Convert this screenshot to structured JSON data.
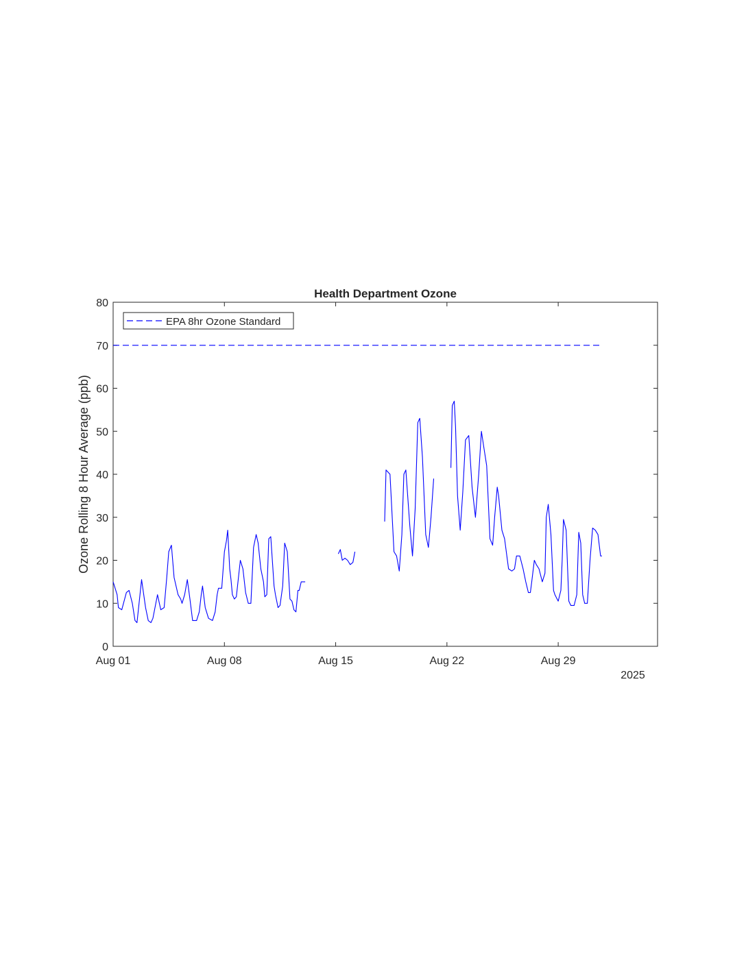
{
  "chart_data": {
    "type": "line",
    "title": "Health Department Ozone",
    "xlabel": "",
    "ylabel": "Ozone Rolling 8 Hour Average (ppb)",
    "x_axis": {
      "type": "date",
      "range": [
        "2025-08-01",
        "2025-09-04 06:00"
      ],
      "ticks": [
        "2025-08-01",
        "2025-08-08",
        "2025-08-15",
        "2025-08-22",
        "2025-08-29"
      ],
      "tick_labels": [
        "Aug 01",
        "Aug 08",
        "Aug 15",
        "Aug 22",
        "Aug 29"
      ],
      "secondary_label": "2025"
    },
    "y_axis": {
      "range": [
        0,
        80
      ],
      "ticks": [
        0,
        10,
        20,
        30,
        40,
        50,
        60,
        70,
        80
      ],
      "tick_labels": [
        "0",
        "10",
        "20",
        "30",
        "40",
        "50",
        "60",
        "70",
        "80"
      ]
    },
    "grid": false,
    "legend": {
      "placement": "top-left",
      "entries": [
        {
          "label": "EPA 8hr Ozone Standard",
          "style": "dashed",
          "color": "#0000ff"
        }
      ]
    },
    "series": [
      {
        "name": "EPA 8hr Ozone Standard",
        "style": "dashed",
        "color": "#0000ff",
        "x": [
          "2025-08-01",
          "2025-08-31 18:00"
        ],
        "y": [
          70,
          70
        ]
      },
      {
        "style": "solid",
        "color": "#0000ff",
        "segments": [
          {
            "x": [
              "2025-08-01 00:00",
              "2025-08-01 06:00",
              "2025-08-01 08:00",
              "2025-08-01 13:00",
              "2025-08-01 20:00",
              "2025-08-02 00:00",
              "2025-08-02 05:00",
              "2025-08-02 09:00",
              "2025-08-02 12:00",
              "2025-08-02 19:00",
              "2025-08-03 01:00",
              "2025-08-03 05:00",
              "2025-08-03 09:00",
              "2025-08-03 12:00",
              "2025-08-03 19:00",
              "2025-08-04 00:00",
              "2025-08-04 05:00",
              "2025-08-04 09:00",
              "2025-08-04 12:00",
              "2025-08-04 16:00",
              "2025-08-04 20:00",
              "2025-08-05 02:00",
              "2025-08-05 06:00",
              "2025-08-05 08:00",
              "2025-08-05 12:00",
              "2025-08-05 16:00",
              "2025-08-05 20:00",
              "2025-08-06 00:00",
              "2025-08-06 06:00",
              "2025-08-06 10:00",
              "2025-08-06 13:00",
              "2025-08-06 15:00",
              "2025-08-06 19:00",
              "2025-08-07 00:00",
              "2025-08-07 06:00",
              "2025-08-07 10:00",
              "2025-08-07 13:00",
              "2025-08-07 15:00",
              "2025-08-07 20:00",
              "2025-08-08 00:00",
              "2025-08-08 03:00",
              "2025-08-08 05:00",
              "2025-08-08 08:00",
              "2025-08-08 10:00",
              "2025-08-08 12:00",
              "2025-08-08 15:00",
              "2025-08-08 18:00",
              "2025-08-09 00:00",
              "2025-08-09 04:00",
              "2025-08-09 08:00",
              "2025-08-09 12:00",
              "2025-08-09 16:00",
              "2025-08-09 20:00",
              "2025-08-10 00:00",
              "2025-08-10 03:00",
              "2025-08-10 07:00",
              "2025-08-10 11:00",
              "2025-08-10 13:00",
              "2025-08-10 16:00",
              "2025-08-10 19:00",
              "2025-08-10 22:00",
              "2025-08-11 03:00",
              "2025-08-11 05:00",
              "2025-08-11 09:00",
              "2025-08-11 12:00",
              "2025-08-11 16:00",
              "2025-08-11 19:00",
              "2025-08-11 23:00",
              "2025-08-12 03:00",
              "2025-08-12 06:00",
              "2025-08-12 09:00",
              "2025-08-12 12:00",
              "2025-08-12 15:00",
              "2025-08-12 17:00",
              "2025-08-12 20:00",
              "2025-08-13 00:00",
              "2025-08-13 02:00"
            ],
            "y": [
              15,
              12,
              9,
              8.5,
              12.5,
              13,
              10,
              6,
              5.5,
              15.5,
              9,
              6,
              5.5,
              6.5,
              12,
              8.5,
              9,
              16,
              22,
              23.5,
              16,
              12,
              11,
              10,
              12,
              15.5,
              11,
              6,
              6,
              8,
              12,
              14,
              9,
              6.5,
              6,
              8,
              12,
              13.5,
              13.5,
              22,
              24.5,
              27,
              18,
              15.5,
              12,
              11,
              11.5,
              20,
              18,
              12.5,
              10,
              10,
              23,
              26,
              24,
              18,
              15,
              11.5,
              12,
              25,
              25.5,
              14,
              12,
              9,
              9.5,
              14,
              24,
              22,
              11,
              10.5,
              8.5,
              8,
              13,
              13,
              15,
              15,
              15
            ]
          },
          {
            "x": [
              "2025-08-15 04:00",
              "2025-08-15 07:00",
              "2025-08-15 10:00",
              "2025-08-15 14:00",
              "2025-08-15 18:00",
              "2025-08-15 22:00",
              "2025-08-16 02:00",
              "2025-08-16 05:00"
            ],
            "y": [
              21.5,
              22.5,
              20,
              20.5,
              20,
              19,
              19.5,
              22
            ]
          },
          {
            "x": [
              "2025-08-18 02:00",
              "2025-08-18 04:00",
              "2025-08-18 10:00",
              "2025-08-18 16:00",
              "2025-08-18 20:00",
              "2025-08-19 00:00",
              "2025-08-19 04:00",
              "2025-08-19 07:00",
              "2025-08-19 10:00",
              "2025-08-19 16:00",
              "2025-08-19 20:00",
              "2025-08-20 00:00",
              "2025-08-20 04:00",
              "2025-08-20 07:00",
              "2025-08-20 11:00",
              "2025-08-20 16:00",
              "2025-08-20 20:00",
              "2025-08-21 00:00",
              "2025-08-21 04:00"
            ],
            "y": [
              29,
              41,
              40,
              22,
              21,
              17.5,
              26,
              40,
              41,
              28,
              21,
              32,
              52,
              53,
              44,
              26,
              23,
              30,
              39
            ]
          },
          {
            "x": [
              "2025-08-22 06:00",
              "2025-08-22 08:00",
              "2025-08-22 11:00",
              "2025-08-22 13:00",
              "2025-08-22 16:00",
              "2025-08-22 20:00",
              "2025-08-23 00:00",
              "2025-08-23 04:00",
              "2025-08-23 09:00",
              "2025-08-23 14:00",
              "2025-08-23 19:00",
              "2025-08-24 00:00",
              "2025-08-24 04:00",
              "2025-08-24 08:00",
              "2025-08-24 12:00",
              "2025-08-24 17:00",
              "2025-08-24 21:00",
              "2025-08-25 00:00",
              "2025-08-25 04:00",
              "2025-08-25 06:00",
              "2025-08-25 11:00",
              "2025-08-25 15:00",
              "2025-08-25 21:00",
              "2025-08-26 02:00",
              "2025-08-26 06:00",
              "2025-08-26 09:00",
              "2025-08-26 14:00",
              "2025-08-26 19:00",
              "2025-08-26 23:00",
              "2025-08-27 03:00",
              "2025-08-27 06:00",
              "2025-08-27 08:00",
              "2025-08-27 12:00",
              "2025-08-27 15:00",
              "2025-08-27 19:00",
              "2025-08-28 00:00",
              "2025-08-28 04:00",
              "2025-08-28 06:00",
              "2025-08-28 09:00",
              "2025-08-28 13:00",
              "2025-08-28 17:00",
              "2025-08-28 19:00",
              "2025-08-29 00:00",
              "2025-08-29 04:00",
              "2025-08-29 06:00",
              "2025-08-29 08:00",
              "2025-08-29 12:00",
              "2025-08-29 16:00",
              "2025-08-29 19:00",
              "2025-08-30 00:00",
              "2025-08-30 04:00",
              "2025-08-30 07:00",
              "2025-08-30 10:00",
              "2025-08-30 13:00",
              "2025-08-30 16:00",
              "2025-08-30 20:00",
              "2025-08-31 00:00",
              "2025-08-31 04:00",
              "2025-08-31 08:00",
              "2025-08-31 12:00",
              "2025-08-31 16:00",
              "2025-08-31 18:00"
            ],
            "y": [
              41.5,
              56,
              57,
              51,
              35,
              27,
              36,
              48,
              49,
              37,
              30,
              40,
              50,
              46,
              42,
              25,
              23.5,
              30,
              37,
              35,
              27,
              25,
              18,
              17.5,
              18,
              21,
              21,
              18,
              15,
              12.5,
              12.5,
              15,
              20,
              19,
              18,
              15,
              17,
              30,
              33,
              26,
              13,
              12,
              10.5,
              13,
              20,
              29.5,
              27,
              10.5,
              9.5,
              9.5,
              12,
              26.5,
              24,
              12,
              10,
              10,
              20,
              27.5,
              27,
              26,
              21,
              21
            ]
          }
        ]
      }
    ]
  }
}
